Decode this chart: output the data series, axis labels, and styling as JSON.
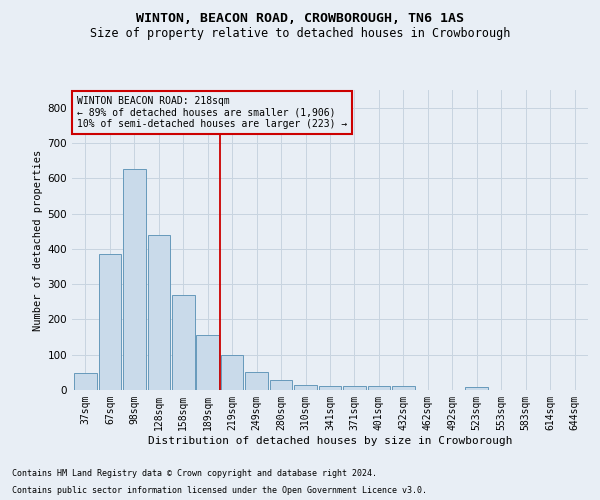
{
  "title": "WINTON, BEACON ROAD, CROWBOROUGH, TN6 1AS",
  "subtitle": "Size of property relative to detached houses in Crowborough",
  "xlabel": "Distribution of detached houses by size in Crowborough",
  "ylabel": "Number of detached properties",
  "footnote1": "Contains HM Land Registry data © Crown copyright and database right 2024.",
  "footnote2": "Contains public sector information licensed under the Open Government Licence v3.0.",
  "categories": [
    "37sqm",
    "67sqm",
    "98sqm",
    "128sqm",
    "158sqm",
    "189sqm",
    "219sqm",
    "249sqm",
    "280sqm",
    "310sqm",
    "341sqm",
    "371sqm",
    "401sqm",
    "432sqm",
    "462sqm",
    "492sqm",
    "523sqm",
    "553sqm",
    "583sqm",
    "614sqm",
    "644sqm"
  ],
  "values": [
    47,
    385,
    625,
    440,
    268,
    155,
    98,
    52,
    28,
    15,
    10,
    10,
    10,
    10,
    0,
    0,
    8,
    0,
    0,
    0,
    0
  ],
  "bar_color": "#c9daea",
  "bar_edge_color": "#6699bb",
  "ylim": [
    0,
    850
  ],
  "yticks": [
    0,
    100,
    200,
    300,
    400,
    500,
    600,
    700,
    800
  ],
  "grid_color": "#c8d4e0",
  "background_color": "#e8eef5",
  "annotation_text_line1": "WINTON BEACON ROAD: 218sqm",
  "annotation_text_line2": "← 89% of detached houses are smaller (1,906)",
  "annotation_text_line3": "10% of semi-detached houses are larger (223) →",
  "vline_color": "#cc0000",
  "annotation_box_color": "#cc0000",
  "vline_x": 5.5,
  "title_fontsize": 9.5,
  "subtitle_fontsize": 8.5,
  "xlabel_fontsize": 8,
  "ylabel_fontsize": 7.5,
  "tick_fontsize": 7,
  "annot_fontsize": 7,
  "footnote_fontsize": 6
}
